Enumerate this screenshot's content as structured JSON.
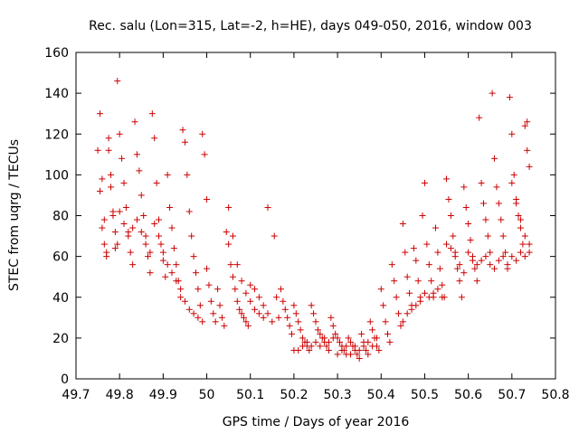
{
  "chart_data": {
    "type": "scatter",
    "title": "Rec. salu (Lon=315, Lat=-2, h=HE), days 049-050, 2016, window 003",
    "xlabel": "GPS time / Days of year 2016",
    "ylabel": "STEC from uqrg / TECUs",
    "xlim": [
      49.7,
      50.8
    ],
    "ylim": [
      0,
      160
    ],
    "xticks": [
      "49.7",
      "49.8",
      "49.9",
      "50",
      "50.1",
      "50.2",
      "50.3",
      "50.4",
      "50.5",
      "50.6",
      "50.7",
      "50.8"
    ],
    "yticks": [
      "0",
      "20",
      "40",
      "60",
      "80",
      "100",
      "120",
      "140",
      "160"
    ],
    "marker": "plus",
    "marker_color": "#cc0000",
    "grid": false,
    "legend": "none",
    "points": [
      [
        49.75,
        112
      ],
      [
        49.755,
        92
      ],
      [
        49.76,
        74
      ],
      [
        49.765,
        66
      ],
      [
        49.77,
        60
      ],
      [
        49.775,
        118
      ],
      [
        49.78,
        100
      ],
      [
        49.785,
        82
      ],
      [
        49.79,
        64
      ],
      [
        49.795,
        146
      ],
      [
        49.755,
        130
      ],
      [
        49.76,
        98
      ],
      [
        49.765,
        78
      ],
      [
        49.77,
        62
      ],
      [
        49.775,
        112
      ],
      [
        49.78,
        94
      ],
      [
        49.785,
        80
      ],
      [
        49.79,
        72
      ],
      [
        49.795,
        66
      ],
      [
        49.8,
        120
      ],
      [
        49.805,
        108
      ],
      [
        49.81,
        96
      ],
      [
        49.815,
        84
      ],
      [
        49.82,
        72
      ],
      [
        49.825,
        62
      ],
      [
        49.83,
        56
      ],
      [
        49.835,
        126
      ],
      [
        49.84,
        110
      ],
      [
        49.845,
        102
      ],
      [
        49.85,
        90
      ],
      [
        49.855,
        80
      ],
      [
        49.86,
        70
      ],
      [
        49.865,
        60
      ],
      [
        49.87,
        52
      ],
      [
        49.875,
        130
      ],
      [
        49.88,
        118
      ],
      [
        49.885,
        96
      ],
      [
        49.89,
        78
      ],
      [
        49.895,
        66
      ],
      [
        49.9,
        58
      ],
      [
        49.905,
        50
      ],
      [
        49.91,
        100
      ],
      [
        49.915,
        84
      ],
      [
        49.92,
        74
      ],
      [
        49.925,
        64
      ],
      [
        49.93,
        56
      ],
      [
        49.935,
        48
      ],
      [
        49.94,
        40
      ],
      [
        49.945,
        122
      ],
      [
        49.95,
        116
      ],
      [
        49.955,
        100
      ],
      [
        49.96,
        82
      ],
      [
        49.965,
        70
      ],
      [
        49.97,
        60
      ],
      [
        49.975,
        52
      ],
      [
        49.98,
        44
      ],
      [
        49.985,
        36
      ],
      [
        49.99,
        120
      ],
      [
        49.995,
        110
      ],
      [
        50.0,
        88
      ],
      [
        49.8,
        82
      ],
      [
        49.81,
        76
      ],
      [
        49.82,
        70
      ],
      [
        49.83,
        74
      ],
      [
        49.84,
        78
      ],
      [
        49.85,
        72
      ],
      [
        49.86,
        66
      ],
      [
        49.87,
        62
      ],
      [
        49.88,
        76
      ],
      [
        49.89,
        70
      ],
      [
        49.9,
        62
      ],
      [
        49.91,
        56
      ],
      [
        49.92,
        52
      ],
      [
        49.93,
        48
      ],
      [
        49.94,
        44
      ],
      [
        49.95,
        38
      ],
      [
        49.96,
        34
      ],
      [
        49.97,
        32
      ],
      [
        49.98,
        30
      ],
      [
        49.99,
        28
      ],
      [
        50.0,
        54
      ],
      [
        50.005,
        46
      ],
      [
        50.01,
        38
      ],
      [
        50.015,
        32
      ],
      [
        50.02,
        28
      ],
      [
        50.025,
        44
      ],
      [
        50.03,
        36
      ],
      [
        50.035,
        30
      ],
      [
        50.04,
        26
      ],
      [
        50.045,
        72
      ],
      [
        50.05,
        66
      ],
      [
        50.055,
        56
      ],
      [
        50.06,
        50
      ],
      [
        50.065,
        44
      ],
      [
        50.07,
        38
      ],
      [
        50.075,
        34
      ],
      [
        50.08,
        32
      ],
      [
        50.085,
        30
      ],
      [
        50.09,
        28
      ],
      [
        50.095,
        26
      ],
      [
        50.05,
        84
      ],
      [
        50.06,
        70
      ],
      [
        50.07,
        56
      ],
      [
        50.08,
        48
      ],
      [
        50.09,
        42
      ],
      [
        50.1,
        38
      ],
      [
        50.11,
        34
      ],
      [
        50.12,
        32
      ],
      [
        50.13,
        30
      ],
      [
        50.14,
        84
      ],
      [
        50.1,
        46
      ],
      [
        50.11,
        44
      ],
      [
        50.12,
        40
      ],
      [
        50.13,
        36
      ],
      [
        50.14,
        32
      ],
      [
        50.15,
        28
      ],
      [
        50.155,
        70
      ],
      [
        50.16,
        40
      ],
      [
        50.165,
        30
      ],
      [
        50.17,
        44
      ],
      [
        50.175,
        38
      ],
      [
        50.18,
        34
      ],
      [
        50.185,
        30
      ],
      [
        50.19,
        26
      ],
      [
        50.195,
        22
      ],
      [
        50.2,
        36
      ],
      [
        50.205,
        32
      ],
      [
        50.21,
        28
      ],
      [
        50.215,
        24
      ],
      [
        50.22,
        20
      ],
      [
        50.225,
        18
      ],
      [
        50.23,
        16
      ],
      [
        50.235,
        14
      ],
      [
        50.24,
        36
      ],
      [
        50.245,
        32
      ],
      [
        50.25,
        28
      ],
      [
        50.255,
        24
      ],
      [
        50.26,
        22
      ],
      [
        50.265,
        20
      ],
      [
        50.27,
        18
      ],
      [
        50.275,
        16
      ],
      [
        50.28,
        14
      ],
      [
        50.285,
        30
      ],
      [
        50.29,
        26
      ],
      [
        50.295,
        22
      ],
      [
        50.3,
        20
      ],
      [
        50.305,
        18
      ],
      [
        50.31,
        16
      ],
      [
        50.315,
        14
      ],
      [
        50.32,
        12
      ],
      [
        50.325,
        20
      ],
      [
        50.33,
        18
      ],
      [
        50.335,
        16
      ],
      [
        50.34,
        14
      ],
      [
        50.345,
        12
      ],
      [
        50.35,
        10
      ],
      [
        50.355,
        22
      ],
      [
        50.36,
        18
      ],
      [
        50.365,
        14
      ],
      [
        50.37,
        12
      ],
      [
        50.375,
        28
      ],
      [
        50.38,
        24
      ],
      [
        50.385,
        20
      ],
      [
        50.39,
        16
      ],
      [
        50.395,
        14
      ],
      [
        50.4,
        44
      ],
      [
        50.405,
        36
      ],
      [
        50.41,
        28
      ],
      [
        50.415,
        22
      ],
      [
        50.42,
        18
      ],
      [
        50.425,
        56
      ],
      [
        50.43,
        48
      ],
      [
        50.435,
        40
      ],
      [
        50.44,
        32
      ],
      [
        50.445,
        26
      ],
      [
        50.45,
        76
      ],
      [
        50.455,
        62
      ],
      [
        50.46,
        50
      ],
      [
        50.465,
        42
      ],
      [
        50.47,
        36
      ],
      [
        50.475,
        64
      ],
      [
        50.48,
        58
      ],
      [
        50.485,
        48
      ],
      [
        50.49,
        40
      ],
      [
        50.495,
        80
      ],
      [
        50.5,
        96
      ],
      [
        50.505,
        66
      ],
      [
        50.51,
        56
      ],
      [
        50.515,
        48
      ],
      [
        50.52,
        40
      ],
      [
        50.525,
        74
      ],
      [
        50.53,
        62
      ],
      [
        50.535,
        54
      ],
      [
        50.54,
        46
      ],
      [
        50.545,
        40
      ],
      [
        50.55,
        98
      ],
      [
        50.555,
        88
      ],
      [
        50.56,
        80
      ],
      [
        50.565,
        70
      ],
      [
        50.57,
        62
      ],
      [
        50.575,
        54
      ],
      [
        50.58,
        48
      ],
      [
        50.585,
        40
      ],
      [
        50.59,
        94
      ],
      [
        50.595,
        84
      ],
      [
        50.6,
        76
      ],
      [
        50.605,
        68
      ],
      [
        50.61,
        60
      ],
      [
        50.615,
        54
      ],
      [
        50.62,
        48
      ],
      [
        50.625,
        128
      ],
      [
        50.63,
        96
      ],
      [
        50.635,
        86
      ],
      [
        50.64,
        78
      ],
      [
        50.645,
        70
      ],
      [
        50.65,
        62
      ],
      [
        50.655,
        140
      ],
      [
        50.66,
        108
      ],
      [
        50.665,
        94
      ],
      [
        50.67,
        86
      ],
      [
        50.675,
        78
      ],
      [
        50.68,
        70
      ],
      [
        50.685,
        62
      ],
      [
        50.69,
        54
      ],
      [
        50.695,
        138
      ],
      [
        50.7,
        120
      ],
      [
        50.705,
        100
      ],
      [
        50.71,
        88
      ],
      [
        50.715,
        80
      ],
      [
        50.72,
        74
      ],
      [
        50.725,
        66
      ],
      [
        50.73,
        124
      ],
      [
        50.735,
        112
      ],
      [
        50.74,
        104
      ],
      [
        50.7,
        96
      ],
      [
        50.71,
        86
      ],
      [
        50.72,
        78
      ],
      [
        50.73,
        70
      ],
      [
        50.74,
        62
      ],
      [
        50.735,
        126
      ],
      [
        50.55,
        66
      ],
      [
        50.56,
        64
      ],
      [
        50.57,
        60
      ],
      [
        50.58,
        56
      ],
      [
        50.59,
        52
      ],
      [
        50.6,
        62
      ],
      [
        50.61,
        58
      ],
      [
        50.62,
        56
      ],
      [
        50.63,
        58
      ],
      [
        50.64,
        60
      ],
      [
        50.65,
        56
      ],
      [
        50.66,
        54
      ],
      [
        50.67,
        58
      ],
      [
        50.68,
        60
      ],
      [
        50.69,
        56
      ],
      [
        50.7,
        60
      ],
      [
        50.71,
        58
      ],
      [
        50.72,
        62
      ],
      [
        50.73,
        60
      ],
      [
        50.74,
        66
      ],
      [
        50.45,
        28
      ],
      [
        50.46,
        32
      ],
      [
        50.47,
        34
      ],
      [
        50.48,
        36
      ],
      [
        50.49,
        38
      ],
      [
        50.5,
        42
      ],
      [
        50.51,
        40
      ],
      [
        50.52,
        42
      ],
      [
        50.53,
        44
      ],
      [
        50.54,
        40
      ],
      [
        50.3,
        12
      ],
      [
        50.31,
        14
      ],
      [
        50.32,
        16
      ],
      [
        50.33,
        12
      ],
      [
        50.34,
        16
      ],
      [
        50.35,
        14
      ],
      [
        50.36,
        16
      ],
      [
        50.37,
        18
      ],
      [
        50.38,
        16
      ],
      [
        50.39,
        20
      ],
      [
        50.2,
        14
      ],
      [
        50.21,
        14
      ],
      [
        50.22,
        16
      ],
      [
        50.23,
        18
      ],
      [
        50.24,
        16
      ],
      [
        50.25,
        18
      ],
      [
        50.26,
        16
      ],
      [
        50.27,
        20
      ],
      [
        50.28,
        18
      ],
      [
        50.29,
        20
      ]
    ]
  }
}
